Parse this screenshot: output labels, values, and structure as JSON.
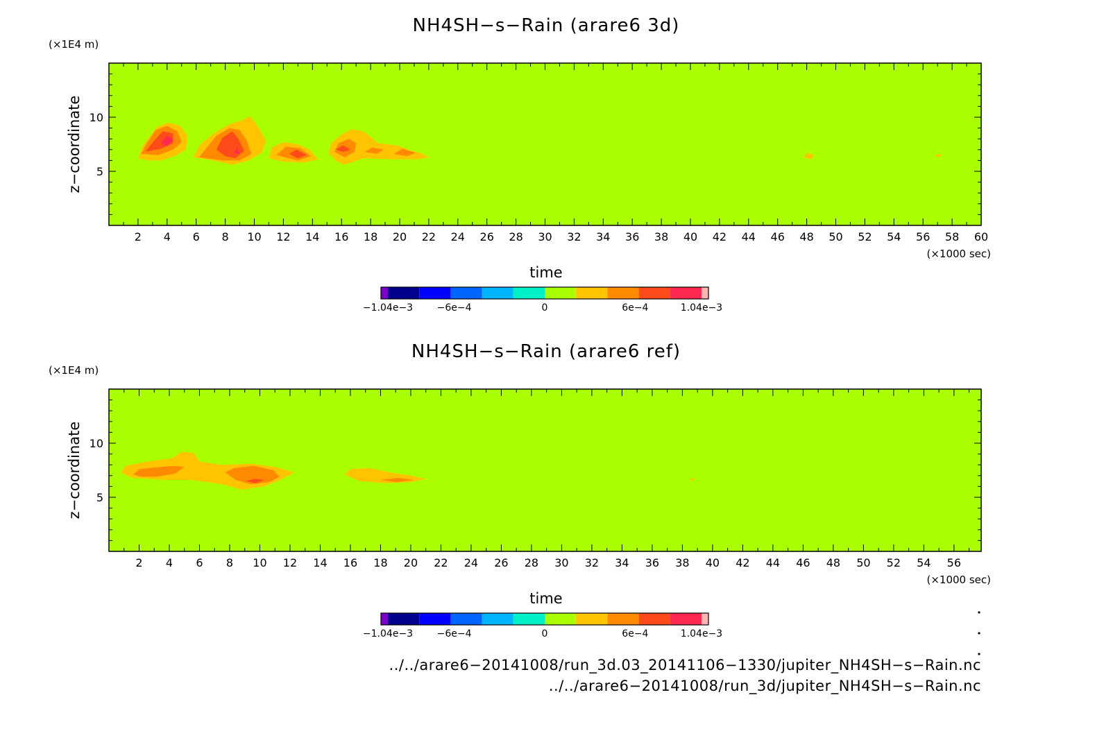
{
  "colors": {
    "background_field": "#aaff00",
    "contour_levels": [
      {
        "level": 1,
        "color": "#ffc400"
      },
      {
        "level": 2,
        "color": "#ff8a00"
      },
      {
        "level": 3,
        "color": "#ff4a1a"
      },
      {
        "level": 4,
        "color": "#ff2850"
      }
    ],
    "colorbar": [
      "#7a00c8",
      "#00008c",
      "#0000ff",
      "#0064ff",
      "#00b4ff",
      "#00f0c8",
      "#aaff00",
      "#ffc400",
      "#ff8a00",
      "#ff4a1a",
      "#ff2850",
      "#ffb4b4"
    ]
  },
  "chart_data": [
    {
      "type": "heatmap",
      "title": "NH4SH−s−Rain (arare6 3d)",
      "xlabel": "time",
      "xunit": "(×1000 sec)",
      "ylabel": "z−coordinate",
      "yunit": "(×1E4 m)",
      "xlim": [
        0,
        60
      ],
      "ylim": [
        0,
        15
      ],
      "xticks": [
        "2",
        "4",
        "6",
        "8",
        "10",
        "12",
        "14",
        "16",
        "18",
        "20",
        "22",
        "24",
        "26",
        "28",
        "30",
        "32",
        "34",
        "36",
        "38",
        "40",
        "42",
        "44",
        "46",
        "48",
        "50",
        "52",
        "54",
        "56",
        "58",
        "60"
      ],
      "xtick_values": [
        2,
        4,
        6,
        8,
        10,
        12,
        14,
        16,
        18,
        20,
        22,
        24,
        26,
        28,
        30,
        32,
        34,
        36,
        38,
        40,
        42,
        44,
        46,
        48,
        50,
        52,
        54,
        56,
        58,
        60
      ],
      "yticks": [
        "5",
        "10"
      ],
      "ytick_values": [
        5,
        10
      ],
      "colorbar": {
        "min": -0.00104,
        "max": 0.00104,
        "labels": [
          "−1.04e−3",
          "−6e−4",
          "0",
          "6e−4",
          "1.04e−3"
        ],
        "label_values": [
          -0.00104,
          -0.0006,
          0,
          0.0006,
          0.00104
        ]
      },
      "regions": [
        {
          "level": 1,
          "points": [
            [
              2,
              6.2
            ],
            [
              2.3,
              7.3
            ],
            [
              2.8,
              8.2
            ],
            [
              3.3,
              9.1
            ],
            [
              4.1,
              9.5
            ],
            [
              4.9,
              9.2
            ],
            [
              5.4,
              8.3
            ],
            [
              5.3,
              7.0
            ],
            [
              4.5,
              6.4
            ],
            [
              3.6,
              6.0
            ],
            [
              2.7,
              6.0
            ]
          ]
        },
        {
          "level": 2,
          "points": [
            [
              2.2,
              6.6
            ],
            [
              2.6,
              7.6
            ],
            [
              3.2,
              8.8
            ],
            [
              4.0,
              9.2
            ],
            [
              4.7,
              8.7
            ],
            [
              5.0,
              7.7
            ],
            [
              4.4,
              7.0
            ],
            [
              3.4,
              6.5
            ]
          ]
        },
        {
          "level": 3,
          "points": [
            [
              2.5,
              6.8
            ],
            [
              3.1,
              7.8
            ],
            [
              3.7,
              8.7
            ],
            [
              4.4,
              8.5
            ],
            [
              4.4,
              7.6
            ],
            [
              3.6,
              7.1
            ]
          ]
        },
        {
          "level": 4,
          "points": [
            [
              3.6,
              7.6
            ],
            [
              4.0,
              8.3
            ],
            [
              4.4,
              7.9
            ],
            [
              4.0,
              7.3
            ]
          ]
        },
        {
          "level": 1,
          "points": [
            [
              5.8,
              6.3
            ],
            [
              6.3,
              7.5
            ],
            [
              7.2,
              8.5
            ],
            [
              8.2,
              9.3
            ],
            [
              9.3,
              9.8
            ],
            [
              9.7,
              10.1
            ],
            [
              10.3,
              9.0
            ],
            [
              10.8,
              7.8
            ],
            [
              10.5,
              6.7
            ],
            [
              9.6,
              6.0
            ],
            [
              8.5,
              5.6
            ],
            [
              7.2,
              6.0
            ]
          ]
        },
        {
          "level": 2,
          "points": [
            [
              6.2,
              6.3
            ],
            [
              6.8,
              7.3
            ],
            [
              7.4,
              8.3
            ],
            [
              8.3,
              9.0
            ],
            [
              9.0,
              8.8
            ],
            [
              9.5,
              7.8
            ],
            [
              9.8,
              6.6
            ],
            [
              9.0,
              6.0
            ],
            [
              7.8,
              6.0
            ]
          ]
        },
        {
          "level": 3,
          "points": [
            [
              7.4,
              7.0
            ],
            [
              7.8,
              8.1
            ],
            [
              8.5,
              8.7
            ],
            [
              8.9,
              8.0
            ],
            [
              9.3,
              6.9
            ],
            [
              8.7,
              6.2
            ],
            [
              8.0,
              6.4
            ]
          ]
        },
        {
          "level": 4,
          "points": [
            [
              8.6,
              6.7
            ],
            [
              8.8,
              7.2
            ],
            [
              9.0,
              6.6
            ]
          ]
        },
        {
          "level": 1,
          "points": [
            [
              11.0,
              6.2
            ],
            [
              11.2,
              7.2
            ],
            [
              12.0,
              7.7
            ],
            [
              13.0,
              7.5
            ],
            [
              13.8,
              7.0
            ],
            [
              14.4,
              6.1
            ],
            [
              13.4,
              5.8
            ],
            [
              12.0,
              5.9
            ]
          ]
        },
        {
          "level": 2,
          "points": [
            [
              11.5,
              6.5
            ],
            [
              12.2,
              7.3
            ],
            [
              13.2,
              7.1
            ],
            [
              13.9,
              6.4
            ],
            [
              13.0,
              6.0
            ]
          ]
        },
        {
          "level": 3,
          "points": [
            [
              12.4,
              6.6
            ],
            [
              12.9,
              7.0
            ],
            [
              13.6,
              6.5
            ],
            [
              13.0,
              6.2
            ]
          ]
        },
        {
          "level": 1,
          "points": [
            [
              15.1,
              6.7
            ],
            [
              15.3,
              7.6
            ],
            [
              16.0,
              8.4
            ],
            [
              16.7,
              8.9
            ],
            [
              17.5,
              8.7
            ],
            [
              18.5,
              7.6
            ],
            [
              19.8,
              7.4
            ],
            [
              20.6,
              7.0
            ],
            [
              21.4,
              6.7
            ],
            [
              22.0,
              6.3
            ],
            [
              21.2,
              6.1
            ],
            [
              19.5,
              6.1
            ],
            [
              17.5,
              6.2
            ],
            [
              16.2,
              5.6
            ],
            [
              15.6,
              6.0
            ]
          ]
        },
        {
          "level": 2,
          "points": [
            [
              15.5,
              6.8
            ],
            [
              15.8,
              7.6
            ],
            [
              16.5,
              8.0
            ],
            [
              17.0,
              7.6
            ],
            [
              16.9,
              6.8
            ],
            [
              16.2,
              6.3
            ]
          ]
        },
        {
          "level": 3,
          "points": [
            [
              15.6,
              7.0
            ],
            [
              16.1,
              7.4
            ],
            [
              16.6,
              7.0
            ],
            [
              16.1,
              6.8
            ]
          ]
        },
        {
          "level": 2,
          "points": [
            [
              17.6,
              6.8
            ],
            [
              18.1,
              7.2
            ],
            [
              18.9,
              7.0
            ],
            [
              18.4,
              6.6
            ]
          ]
        },
        {
          "level": 2,
          "points": [
            [
              19.6,
              6.6
            ],
            [
              20.2,
              7.1
            ],
            [
              21.1,
              6.7
            ],
            [
              20.5,
              6.4
            ]
          ]
        },
        {
          "level": 1,
          "points": [
            [
              47.8,
              6.3
            ],
            [
              48.0,
              6.7
            ],
            [
              48.5,
              6.5
            ],
            [
              48.3,
              6.1
            ]
          ]
        },
        {
          "level": 1,
          "points": [
            [
              56.8,
              6.4
            ],
            [
              57.0,
              6.6
            ],
            [
              57.3,
              6.5
            ],
            [
              57.1,
              6.3
            ]
          ]
        }
      ]
    },
    {
      "type": "heatmap",
      "title": "NH4SH−s−Rain (arare6 ref)",
      "xlabel": "time",
      "xunit": "(×1000 sec)",
      "ylabel": "z−coordinate",
      "yunit": "(×1E4 m)",
      "xlim": [
        0,
        57.8
      ],
      "ylim": [
        0,
        15
      ],
      "xticks": [
        "2",
        "4",
        "6",
        "8",
        "10",
        "12",
        "14",
        "16",
        "18",
        "20",
        "22",
        "24",
        "26",
        "28",
        "30",
        "32",
        "34",
        "36",
        "38",
        "40",
        "42",
        "44",
        "46",
        "48",
        "50",
        "52",
        "54",
        "56"
      ],
      "xtick_values": [
        2,
        4,
        6,
        8,
        10,
        12,
        14,
        16,
        18,
        20,
        22,
        24,
        26,
        28,
        30,
        32,
        34,
        36,
        38,
        40,
        42,
        44,
        46,
        48,
        50,
        52,
        54,
        56
      ],
      "yticks": [
        "5",
        "10"
      ],
      "ytick_values": [
        5,
        10
      ],
      "colorbar": {
        "min": -0.00104,
        "max": 0.00104,
        "labels": [
          "−1.04e−3",
          "−6e−4",
          "0",
          "6e−4",
          "1.04e−3"
        ],
        "label_values": [
          -0.00104,
          -0.0006,
          0,
          0.0006,
          0.00104
        ]
      },
      "regions": [
        {
          "level": 1,
          "points": [
            [
              0.8,
              7.3
            ],
            [
              1.1,
              7.9
            ],
            [
              2.5,
              8.3
            ],
            [
              4.2,
              8.6
            ],
            [
              4.8,
              9.2
            ],
            [
              5.6,
              9.1
            ],
            [
              6.0,
              8.3
            ],
            [
              7.5,
              8.0
            ],
            [
              9.5,
              8.1
            ],
            [
              11.0,
              7.8
            ],
            [
              12.3,
              7.3
            ],
            [
              11.5,
              6.7
            ],
            [
              10.3,
              6.0
            ],
            [
              8.8,
              5.7
            ],
            [
              7.5,
              6.2
            ],
            [
              5.5,
              6.6
            ],
            [
              3.5,
              6.6
            ],
            [
              1.5,
              6.8
            ]
          ]
        },
        {
          "level": 2,
          "points": [
            [
              1.6,
              7.1
            ],
            [
              2.0,
              7.6
            ],
            [
              3.4,
              7.8
            ],
            [
              4.3,
              7.9
            ],
            [
              5.0,
              7.8
            ],
            [
              4.4,
              7.2
            ],
            [
              3.2,
              6.9
            ],
            [
              2.1,
              6.9
            ]
          ]
        },
        {
          "level": 2,
          "points": [
            [
              7.7,
              7.3
            ],
            [
              8.3,
              7.7
            ],
            [
              9.6,
              7.9
            ],
            [
              10.9,
              7.5
            ],
            [
              11.3,
              6.9
            ],
            [
              10.6,
              6.4
            ],
            [
              9.4,
              6.2
            ],
            [
              8.4,
              6.6
            ]
          ]
        },
        {
          "level": 3,
          "points": [
            [
              9.1,
              6.5
            ],
            [
              9.6,
              6.7
            ],
            [
              10.3,
              6.6
            ],
            [
              9.7,
              6.3
            ]
          ]
        },
        {
          "level": 1,
          "points": [
            [
              15.6,
              7.1
            ],
            [
              16.0,
              7.6
            ],
            [
              17.3,
              7.7
            ],
            [
              18.6,
              7.3
            ],
            [
              20.0,
              7.0
            ],
            [
              21.0,
              6.7
            ],
            [
              20.0,
              6.4
            ],
            [
              18.3,
              6.3
            ],
            [
              16.6,
              6.5
            ]
          ]
        },
        {
          "level": 2,
          "points": [
            [
              18.0,
              6.6
            ],
            [
              19.2,
              6.8
            ],
            [
              20.2,
              6.6
            ],
            [
              19.0,
              6.4
            ]
          ]
        },
        {
          "level": 1,
          "points": [
            [
              38.5,
              6.6
            ],
            [
              38.6,
              6.8
            ],
            [
              38.8,
              6.7
            ],
            [
              38.7,
              6.5
            ]
          ]
        }
      ]
    }
  ],
  "footer": {
    "path_line_1": "../../arare6−20141008/run_3d.03_20141106−1330/jupiter_NH4SH−s−Rain.nc",
    "path_line_2": "../../arare6−20141008/run_3d/jupiter_NH4SH−s−Rain.nc"
  }
}
